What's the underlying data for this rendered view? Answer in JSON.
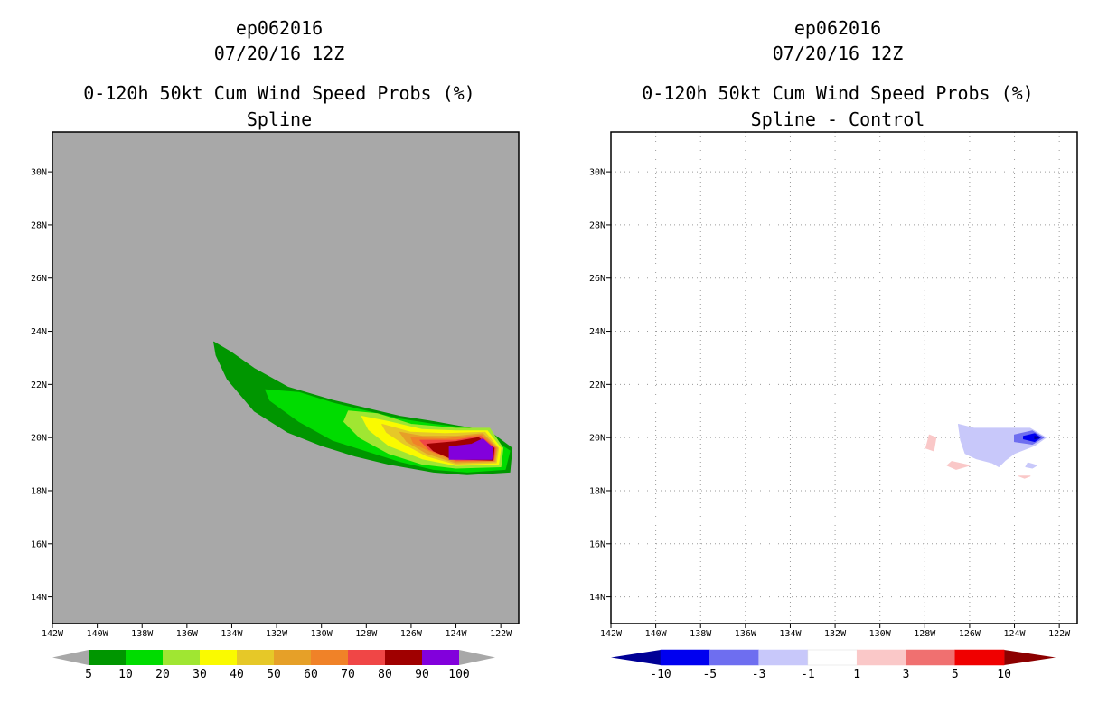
{
  "chart_data": [
    {
      "type": "contour-map",
      "title_lines": [
        "ep062016",
        "07/20/16 12Z",
        "0-120h 50kt Cum Wind Speed Probs (%)",
        "Spline"
      ],
      "lon_ticks": [
        "142W",
        "140W",
        "138W",
        "136W",
        "134W",
        "132W",
        "130W",
        "128W",
        "126W",
        "124W",
        "122W"
      ],
      "lat_ticks": [
        "30N",
        "28N",
        "26N",
        "24N",
        "22N",
        "20N",
        "18N",
        "16N",
        "14N"
      ],
      "lon_range": [
        -142,
        -121.2
      ],
      "lat_range": [
        13,
        31.5
      ],
      "background": "#a8a8a8",
      "grid": false,
      "colorbar": {
        "labels": [
          "5",
          "10",
          "20",
          "30",
          "40",
          "50",
          "60",
          "70",
          "80",
          "90",
          "100"
        ],
        "colors": [
          "#009600",
          "#00dc00",
          "#a0e632",
          "#fafa00",
          "#e6c828",
          "#e6a028",
          "#f08228",
          "#f04646",
          "#a00000",
          "#8200dc"
        ],
        "end_color": "#a8a8a8"
      },
      "contours": [
        {
          "level": 5,
          "color": "#009600",
          "points": [
            [
              -134.8,
              23.6
            ],
            [
              -134.0,
              23.2
            ],
            [
              -133.0,
              22.6
            ],
            [
              -131.5,
              21.9
            ],
            [
              -129.5,
              21.4
            ],
            [
              -128.0,
              21.1
            ],
            [
              -126.5,
              20.8
            ],
            [
              -125.0,
              20.6
            ],
            [
              -123.0,
              20.3
            ],
            [
              -122.3,
              20.1
            ],
            [
              -121.5,
              19.6
            ],
            [
              -121.6,
              18.7
            ],
            [
              -123.5,
              18.6
            ],
            [
              -125.0,
              18.7
            ],
            [
              -127.0,
              19.0
            ],
            [
              -128.5,
              19.3
            ],
            [
              -130.0,
              19.7
            ],
            [
              -131.5,
              20.2
            ],
            [
              -133.0,
              21.0
            ],
            [
              -134.2,
              22.2
            ],
            [
              -134.7,
              23.1
            ]
          ]
        },
        {
          "level": 10,
          "color": "#00dc00",
          "points": [
            [
              -132.5,
              21.8
            ],
            [
              -131.0,
              21.7
            ],
            [
              -129.5,
              21.3
            ],
            [
              -128.0,
              21.0
            ],
            [
              -126.5,
              20.7
            ],
            [
              -125.0,
              20.5
            ],
            [
              -123.0,
              20.3
            ],
            [
              -122.5,
              20.0
            ],
            [
              -121.6,
              19.5
            ],
            [
              -121.8,
              18.8
            ],
            [
              -123.5,
              18.7
            ],
            [
              -125.0,
              18.8
            ],
            [
              -126.5,
              19.1
            ],
            [
              -128.0,
              19.5
            ],
            [
              -129.5,
              19.9
            ],
            [
              -131.0,
              20.6
            ],
            [
              -132.3,
              21.4
            ]
          ]
        },
        {
          "level": 20,
          "color": "#a0e632",
          "points": [
            [
              -128.8,
              21.0
            ],
            [
              -127.5,
              20.9
            ],
            [
              -126.0,
              20.5
            ],
            [
              -124.0,
              20.35
            ],
            [
              -122.5,
              20.35
            ],
            [
              -121.9,
              19.6
            ],
            [
              -122.0,
              18.9
            ],
            [
              -124.0,
              18.85
            ],
            [
              -125.5,
              19.0
            ],
            [
              -127.0,
              19.4
            ],
            [
              -128.3,
              20.0
            ],
            [
              -129.0,
              20.6
            ]
          ]
        },
        {
          "level": 30,
          "color": "#fafa00",
          "points": [
            [
              -128.2,
              20.8
            ],
            [
              -127.0,
              20.6
            ],
            [
              -125.5,
              20.3
            ],
            [
              -124.0,
              20.25
            ],
            [
              -122.6,
              20.25
            ],
            [
              -122.0,
              19.6
            ],
            [
              -122.1,
              19.0
            ],
            [
              -124.0,
              18.95
            ],
            [
              -125.5,
              19.2
            ],
            [
              -127.0,
              19.7
            ],
            [
              -127.9,
              20.3
            ]
          ]
        },
        {
          "level": 40,
          "color": "#e6c828",
          "points": [
            [
              -127.3,
              20.5
            ],
            [
              -126.0,
              20.2
            ],
            [
              -124.5,
              20.15
            ],
            [
              -122.7,
              20.2
            ],
            [
              -122.1,
              19.6
            ],
            [
              -122.2,
              19.05
            ],
            [
              -124.0,
              19.0
            ],
            [
              -125.3,
              19.3
            ],
            [
              -126.4,
              19.8
            ],
            [
              -127.1,
              20.2
            ]
          ]
        },
        {
          "level": 50,
          "color": "#e6a028",
          "points": [
            [
              -126.5,
              20.2
            ],
            [
              -125.5,
              20.05
            ],
            [
              -124.0,
              20.05
            ],
            [
              -122.8,
              20.15
            ],
            [
              -122.15,
              19.6
            ],
            [
              -122.25,
              19.1
            ],
            [
              -124.0,
              19.05
            ],
            [
              -125.3,
              19.4
            ],
            [
              -126.2,
              19.85
            ]
          ]
        },
        {
          "level": 60,
          "color": "#f08228",
          "points": [
            [
              -126.0,
              20.0
            ],
            [
              -124.5,
              19.95
            ],
            [
              -122.85,
              20.1
            ],
            [
              -122.2,
              19.6
            ],
            [
              -122.3,
              19.12
            ],
            [
              -124.0,
              19.1
            ],
            [
              -125.2,
              19.5
            ],
            [
              -125.9,
              19.8
            ]
          ]
        },
        {
          "level": 70,
          "color": "#f04646",
          "points": [
            [
              -125.6,
              19.9
            ],
            [
              -124.0,
              19.9
            ],
            [
              -122.9,
              20.05
            ],
            [
              -122.25,
              19.6
            ],
            [
              -122.32,
              19.15
            ],
            [
              -124.0,
              19.15
            ],
            [
              -125.2,
              19.55
            ]
          ]
        },
        {
          "level": 80,
          "color": "#a00000",
          "points": [
            [
              -125.3,
              19.75
            ],
            [
              -124.0,
              19.85
            ],
            [
              -123.0,
              20.0
            ],
            [
              -122.3,
              19.6
            ],
            [
              -122.35,
              19.15
            ],
            [
              -124.2,
              19.2
            ],
            [
              -125.0,
              19.5
            ]
          ]
        },
        {
          "level": 90,
          "color": "#8200dc",
          "points": [
            [
              -124.3,
              19.65
            ],
            [
              -123.3,
              19.75
            ],
            [
              -122.8,
              19.95
            ],
            [
              -122.35,
              19.6
            ],
            [
              -122.4,
              19.18
            ],
            [
              -124.3,
              19.18
            ]
          ]
        }
      ]
    },
    {
      "type": "contour-map",
      "title_lines": [
        "ep062016",
        "07/20/16 12Z",
        "0-120h 50kt Cum Wind Speed Probs (%)",
        "Spline - Control"
      ],
      "lon_ticks": [
        "142W",
        "140W",
        "138W",
        "136W",
        "134W",
        "132W",
        "130W",
        "128W",
        "126W",
        "124W",
        "122W"
      ],
      "lat_ticks": [
        "30N",
        "28N",
        "26N",
        "24N",
        "22N",
        "20N",
        "18N",
        "16N",
        "14N"
      ],
      "lon_range": [
        -142,
        -121.2
      ],
      "lat_range": [
        13,
        31.5
      ],
      "background": "#ffffff",
      "grid": true,
      "colorbar": {
        "labels": [
          "-10",
          "-5",
          "-3",
          "-1",
          "1",
          "3",
          "5",
          "10"
        ],
        "colors": [
          "#0000f0",
          "#6e6ef0",
          "#c8c8fa",
          "#ffffff",
          "#fac8c8",
          "#f07070",
          "#f00000"
        ],
        "end_left": "#000096",
        "end_right": "#8c0000"
      },
      "contours": [
        {
          "level": -1,
          "color": "#c8c8fa",
          "points": [
            [
              -126.5,
              20.5
            ],
            [
              -125.8,
              20.35
            ],
            [
              -124.0,
              20.35
            ],
            [
              -123.3,
              20.35
            ],
            [
              -122.6,
              20.0
            ],
            [
              -123.1,
              19.7
            ],
            [
              -124.0,
              19.4
            ],
            [
              -124.4,
              19.15
            ],
            [
              -124.7,
              18.9
            ],
            [
              -125.0,
              19.05
            ],
            [
              -125.7,
              19.2
            ],
            [
              -126.2,
              19.4
            ],
            [
              -126.4,
              19.9
            ]
          ]
        },
        {
          "level": -1,
          "color": "#c8c8fa",
          "points": [
            [
              -123.4,
              19.05
            ],
            [
              -123.0,
              18.95
            ],
            [
              -123.2,
              18.85
            ],
            [
              -123.5,
              18.9
            ]
          ]
        },
        {
          "level": -3,
          "color": "#6e6ef0",
          "points": [
            [
              -124.0,
              20.1
            ],
            [
              -123.2,
              20.25
            ],
            [
              -122.7,
              20.0
            ],
            [
              -123.2,
              19.75
            ],
            [
              -124.0,
              19.85
            ]
          ]
        },
        {
          "level": -5,
          "color": "#0000f0",
          "points": [
            [
              -123.6,
              20.05
            ],
            [
              -123.1,
              20.15
            ],
            [
              -122.85,
              20.0
            ],
            [
              -123.1,
              19.85
            ],
            [
              -123.6,
              19.95
            ]
          ]
        },
        {
          "level": -10,
          "color": "#000096",
          "points": [
            [
              -123.1,
              20.05
            ],
            [
              -122.9,
              20.0
            ],
            [
              -123.1,
              19.95
            ]
          ]
        },
        {
          "level": 1,
          "color": "#fac8c8",
          "points": [
            [
              -127.8,
              20.1
            ],
            [
              -127.5,
              20.0
            ],
            [
              -127.6,
              19.5
            ],
            [
              -127.95,
              19.6
            ]
          ]
        },
        {
          "level": 1,
          "color": "#fac8c8",
          "points": [
            [
              -126.8,
              19.1
            ],
            [
              -126.0,
              18.95
            ],
            [
              -126.6,
              18.8
            ],
            [
              -127.0,
              18.95
            ]
          ]
        },
        {
          "level": 1,
          "color": "#fac8c8",
          "points": [
            [
              -123.8,
              18.55
            ],
            [
              -123.3,
              18.55
            ],
            [
              -123.55,
              18.47
            ]
          ]
        }
      ]
    }
  ]
}
